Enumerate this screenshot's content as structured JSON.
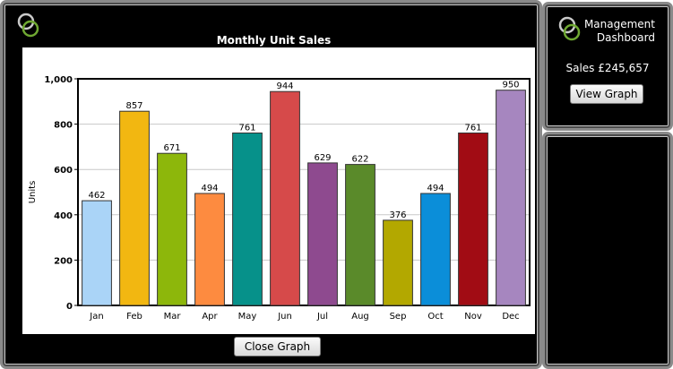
{
  "main": {
    "close_label": "Close Graph"
  },
  "side": {
    "title_line1": "Management",
    "title_line2": "Dashboard",
    "sales_label": "Sales",
    "sales_value": "£245,657",
    "view_label": "View Graph"
  },
  "icons": {
    "logo": "rings-logo-icon"
  },
  "chart_data": {
    "type": "bar",
    "title": "Monthly Unit Sales",
    "xlabel": "",
    "ylabel": "Units",
    "ylim": [
      0,
      1000
    ],
    "yticks": [
      "0",
      "200",
      "400",
      "600",
      "800",
      "1,000"
    ],
    "grid": true,
    "categories": [
      "Jan",
      "Feb",
      "Mar",
      "Apr",
      "May",
      "Jun",
      "Jul",
      "Aug",
      "Sep",
      "Oct",
      "Nov",
      "Dec"
    ],
    "values": [
      462,
      857,
      671,
      494,
      761,
      944,
      629,
      622,
      376,
      494,
      761,
      950
    ],
    "colors": [
      "#aad4f7",
      "#f2b711",
      "#8db70b",
      "#fd8b40",
      "#06918a",
      "#d64a4a",
      "#8e4a8f",
      "#5a8a2a",
      "#b3a800",
      "#0b8ed9",
      "#a10c14",
      "#a686bf"
    ]
  }
}
